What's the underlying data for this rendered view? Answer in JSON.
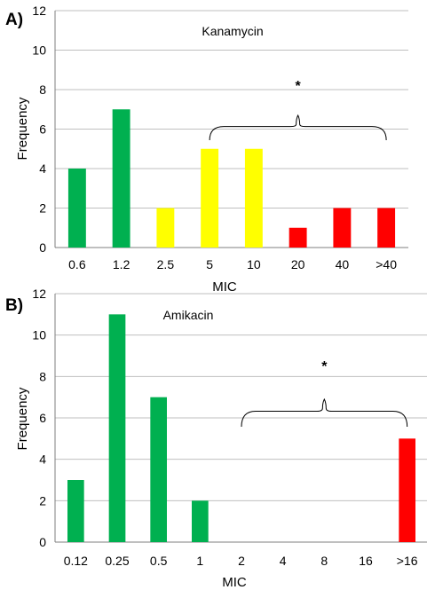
{
  "colors": {
    "green": "#00B050",
    "yellow": "#FFFF00",
    "red": "#FF0000"
  },
  "chart_data": [
    {
      "type": "bar",
      "panel_label": "A)",
      "title": "Kanamycin",
      "xlabel": "MIC",
      "ylabel": "Frequency",
      "ylim": [
        0,
        12
      ],
      "yticks": [
        0,
        2,
        4,
        6,
        8,
        10,
        12
      ],
      "grid": true,
      "categories": [
        "0.6",
        "1.2",
        "2.5",
        "5",
        "10",
        "20",
        "40",
        ">40"
      ],
      "values": [
        4,
        7,
        2,
        5,
        5,
        1,
        2,
        2
      ],
      "bar_colors": [
        "green",
        "green",
        "yellow",
        "yellow",
        "yellow",
        "red",
        "red",
        "red"
      ],
      "annotation": {
        "text": "*",
        "from_category": "5",
        "to_category": ">40"
      }
    },
    {
      "type": "bar",
      "panel_label": "B)",
      "title": "Amikacin",
      "xlabel": "MIC",
      "ylabel": "Frequency",
      "ylim": [
        0,
        12
      ],
      "yticks": [
        0,
        2,
        4,
        6,
        8,
        10,
        12
      ],
      "grid": true,
      "categories": [
        "0.12",
        "0.25",
        "0.5",
        "1",
        "2",
        "4",
        "8",
        "16",
        ">16"
      ],
      "values": [
        3,
        11,
        7,
        2,
        0,
        0,
        0,
        0,
        5
      ],
      "bar_colors": [
        "green",
        "green",
        "green",
        "green",
        "green",
        "green",
        "green",
        "green",
        "red"
      ],
      "annotation": {
        "text": "*",
        "from_category": "2",
        "to_category": ">16"
      }
    }
  ]
}
